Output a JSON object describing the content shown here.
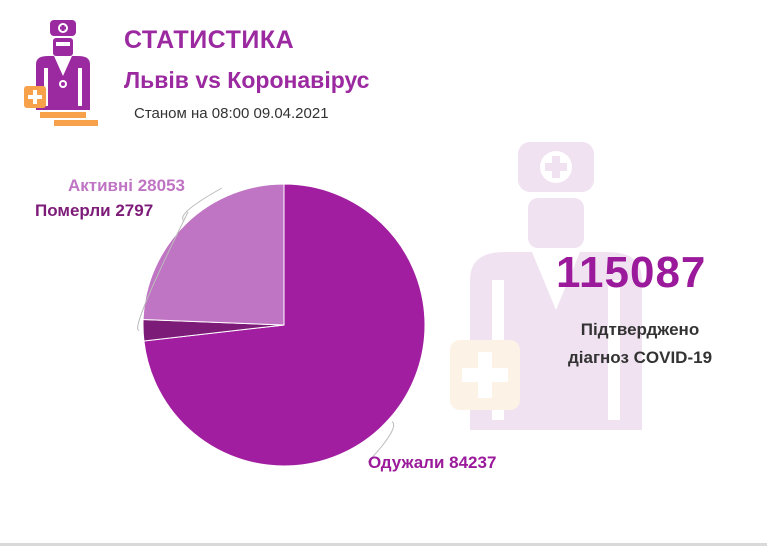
{
  "header": {
    "title": "СТАТИСТИКА",
    "subtitle": "Львів vs Коронавірус",
    "as_of": "Станом на 08:00 09.04.2021"
  },
  "icons": {
    "logo": "doctor-icon",
    "watermark": "doctor-watermark-icon"
  },
  "colors": {
    "brand": "#9b2aa0",
    "recovered": "#a11ea0",
    "dead": "#7d1b78",
    "active": "#c074c4",
    "accent_orange": "#f7a24a"
  },
  "total": {
    "value": "115087",
    "caption_line1": "Підтверджено",
    "caption_line2": "діагноз COVID-19"
  },
  "chart_data": {
    "type": "pie",
    "categories": [
      "Одужали",
      "Померли",
      "Активні"
    ],
    "values": [
      84237,
      2797,
      28053
    ],
    "labels": [
      "Одужали 84237",
      "Померли 2797",
      "Активні 28053"
    ],
    "colors": [
      "#a11ea0",
      "#7d1b78",
      "#c074c4"
    ],
    "start": "12 o'clock",
    "direction": "clockwise"
  }
}
